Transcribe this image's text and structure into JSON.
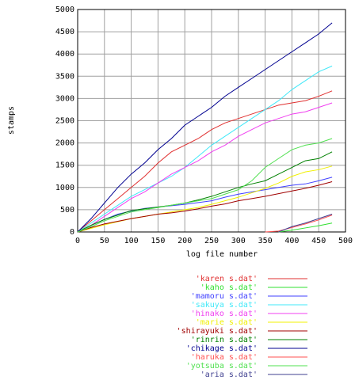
{
  "chart_data": {
    "type": "line",
    "xlabel": "log file number",
    "ylabel": "stamps",
    "x": [
      0,
      25,
      50,
      75,
      100,
      125,
      150,
      175,
      200,
      225,
      250,
      275,
      300,
      325,
      350,
      375,
      400,
      425,
      450,
      475
    ],
    "xlim": [
      0,
      500
    ],
    "xticks": [
      0,
      50,
      100,
      150,
      200,
      250,
      300,
      350,
      400,
      450,
      500
    ],
    "ylim": [
      0,
      5000
    ],
    "yticks": [
      0,
      500,
      1000,
      1500,
      2000,
      2500,
      3000,
      3500,
      4000,
      4500,
      5000
    ],
    "grid": true,
    "series": [
      {
        "name": "'karen s.dat'",
        "color": "#e03030",
        "values": [
          0,
          250,
          500,
          750,
          1000,
          1250,
          1550,
          1800,
          1950,
          2100,
          2300,
          2450,
          2550,
          2650,
          2750,
          2850,
          2900,
          2950,
          3050,
          3170
        ]
      },
      {
        "name": "'kaho s.dat'",
        "color": "#30e030",
        "values": [
          null,
          null,
          null,
          null,
          null,
          null,
          null,
          null,
          null,
          null,
          null,
          null,
          null,
          null,
          null,
          0,
          40,
          90,
          140,
          200
        ]
      },
      {
        "name": "'mamoru s.dat'",
        "color": "#4040ff",
        "values": [
          0,
          150,
          280,
          400,
          470,
          530,
          560,
          590,
          620,
          660,
          700,
          780,
          850,
          900,
          950,
          1000,
          1050,
          1080,
          1150,
          1230
        ]
      },
      {
        "name": "'sakuya s.dat'",
        "color": "#40e8f8",
        "values": [
          0,
          200,
          400,
          600,
          800,
          950,
          1100,
          1250,
          1450,
          1700,
          1950,
          2150,
          2350,
          2550,
          2750,
          2950,
          3200,
          3400,
          3600,
          3730
        ]
      },
      {
        "name": "'hinako s.dat'",
        "color": "#f040f0",
        "values": [
          0,
          150,
          350,
          550,
          750,
          900,
          1100,
          1300,
          1450,
          1600,
          1800,
          1950,
          2150,
          2300,
          2450,
          2550,
          2650,
          2700,
          2800,
          2900
        ]
      },
      {
        "name": "'marie s.dat'",
        "color": "#f0f000",
        "values": [
          0,
          80,
          160,
          230,
          300,
          350,
          400,
          450,
          500,
          550,
          620,
          700,
          780,
          880,
          980,
          1100,
          1250,
          1350,
          1400,
          1480
        ]
      },
      {
        "name": "'shirayuki s.dat'",
        "color": "#a00000",
        "values": [
          0,
          100,
          180,
          240,
          300,
          350,
          400,
          430,
          470,
          520,
          580,
          630,
          700,
          750,
          800,
          860,
          920,
          980,
          1050,
          1130
        ]
      },
      {
        "name": "'rinrin s.dat'",
        "color": "#008000",
        "values": [
          0,
          150,
          280,
          380,
          480,
          520,
          560,
          600,
          650,
          720,
          800,
          900,
          1000,
          1080,
          1150,
          1300,
          1450,
          1600,
          1650,
          1800
        ]
      },
      {
        "name": "'chikage s.dat'",
        "color": "#000090",
        "values": [
          0,
          300,
          650,
          1000,
          1300,
          1550,
          1850,
          2100,
          2400,
          2600,
          2800,
          3050,
          3250,
          3450,
          3650,
          3850,
          4050,
          4250,
          4450,
          4700
        ]
      },
      {
        "name": "'haruka s.dat'",
        "color": "#ff5050",
        "values": [
          null,
          null,
          null,
          null,
          null,
          null,
          null,
          null,
          null,
          null,
          null,
          null,
          null,
          null,
          0,
          20,
          100,
          180,
          270,
          380
        ]
      },
      {
        "name": "'yotsuba s.dat'",
        "color": "#50e050",
        "values": [
          0,
          120,
          250,
          350,
          450,
          500,
          550,
          600,
          650,
          700,
          750,
          850,
          950,
          1150,
          1450,
          1650,
          1850,
          1950,
          2000,
          2100
        ]
      },
      {
        "name": "'aria s.dat'",
        "color": "#404090",
        "values": [
          null,
          null,
          null,
          null,
          null,
          null,
          null,
          null,
          null,
          null,
          null,
          null,
          null,
          null,
          null,
          0,
          120,
          200,
          300,
          400
        ]
      }
    ]
  }
}
